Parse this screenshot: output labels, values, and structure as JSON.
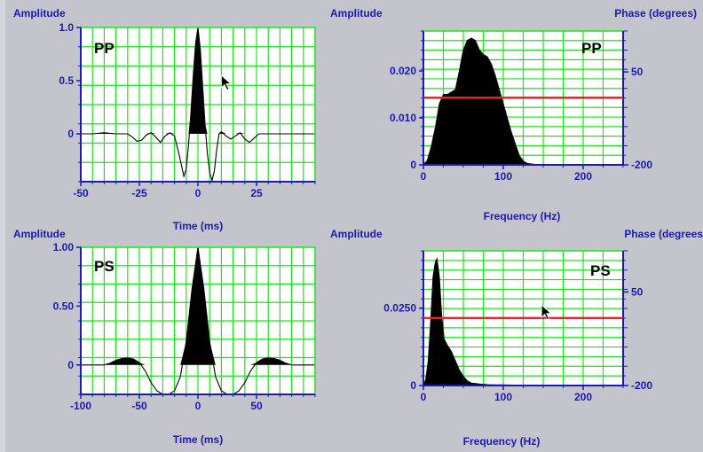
{
  "colors": {
    "background": "#c4c4cc",
    "grid": "#19e619",
    "axis": "#1a1ab4",
    "trace": "#000000",
    "marker": "#ee2222"
  },
  "chart_data": [
    {
      "type": "line",
      "fill": "positive-lobes",
      "tag": "PP",
      "ylabel": "Amplitude",
      "xlabel": "Time (ms)",
      "xlim": [
        -50,
        50
      ],
      "ylim": [
        -0.45,
        1.0
      ],
      "xticks": [
        -50,
        -25,
        0,
        25
      ],
      "yticks": [
        0,
        0.5,
        1.0
      ],
      "ytick_labels": [
        "0",
        "0.5",
        "1.0"
      ],
      "x": [
        -50,
        -45,
        -40,
        -35,
        -30,
        -28,
        -26,
        -24,
        -22,
        -20,
        -18,
        -16,
        -14,
        -12,
        -10,
        -8,
        -6,
        -5,
        -4,
        -3,
        -2,
        -1,
        0,
        1,
        2,
        3,
        4,
        5,
        6,
        7,
        8,
        9,
        10,
        12,
        14,
        16,
        18,
        20,
        22,
        24,
        26,
        28,
        30,
        35,
        40,
        45,
        50
      ],
      "y": [
        0,
        0,
        0.01,
        0,
        0,
        -0.03,
        -0.07,
        -0.06,
        -0.01,
        0.01,
        -0.03,
        -0.08,
        -0.02,
        0.01,
        -0.02,
        -0.2,
        -0.4,
        -0.33,
        -0.1,
        0.2,
        0.55,
        0.85,
        1.0,
        0.8,
        0.45,
        0.1,
        -0.18,
        -0.36,
        -0.44,
        -0.35,
        -0.15,
        0,
        0.02,
        -0.02,
        -0.05,
        -0.02,
        0.01,
        -0.05,
        -0.08,
        -0.04,
        0,
        0,
        0,
        0,
        0,
        0,
        0
      ],
      "cursor": {
        "x": 10,
        "y": 0.55
      }
    },
    {
      "type": "area",
      "tag": "PP",
      "ylabel": "Amplitude",
      "y2label": "Phase (degrees)",
      "xlabel": "Frequency (Hz)",
      "xlim": [
        0,
        250
      ],
      "ylim": [
        0,
        0.0285
      ],
      "y2lim": [
        -200,
        160
      ],
      "xticks": [
        0,
        100,
        200
      ],
      "yticks": [
        0,
        0.01,
        0.02
      ],
      "ytick_labels": [
        "0",
        "0.010",
        "0.020"
      ],
      "y2ticks": [
        -200,
        50
      ],
      "marker_y": 0.0143,
      "x": [
        0,
        5,
        10,
        15,
        20,
        25,
        30,
        35,
        40,
        45,
        50,
        55,
        60,
        65,
        70,
        75,
        80,
        85,
        90,
        95,
        100,
        105,
        110,
        115,
        120,
        125,
        130,
        135,
        140,
        150,
        160,
        170,
        180
      ],
      "y": [
        0,
        0.001,
        0.004,
        0.008,
        0.013,
        0.015,
        0.015,
        0.0155,
        0.016,
        0.02,
        0.0245,
        0.0265,
        0.027,
        0.0265,
        0.0245,
        0.0235,
        0.023,
        0.0215,
        0.019,
        0.016,
        0.013,
        0.01,
        0.007,
        0.0045,
        0.002,
        0.0008,
        0.0003,
        0.0002,
        0.0001,
        0.0001,
        0.0001,
        0.0001,
        0.0001
      ]
    },
    {
      "type": "line",
      "fill": "positive-lobes",
      "tag": "PS",
      "ylabel": "Amplitude",
      "xlabel": "Time (ms)",
      "xlim": [
        -100,
        100
      ],
      "ylim": [
        -0.25,
        1.0
      ],
      "xticks": [
        -100,
        -50,
        0,
        50
      ],
      "yticks": [
        0,
        0.5,
        1.0
      ],
      "ytick_labels": [
        "0",
        "0.50",
        "1.00"
      ],
      "x": [
        -100,
        -90,
        -80,
        -75,
        -70,
        -65,
        -60,
        -55,
        -50,
        -45,
        -40,
        -35,
        -30,
        -25,
        -20,
        -15,
        -10,
        -5,
        0,
        5,
        10,
        15,
        20,
        25,
        30,
        35,
        40,
        45,
        50,
        55,
        60,
        65,
        70,
        75,
        80,
        90,
        100
      ],
      "y": [
        0,
        0,
        0,
        0.015,
        0.04,
        0.055,
        0.06,
        0.05,
        0.02,
        -0.05,
        -0.15,
        -0.22,
        -0.25,
        -0.25,
        -0.22,
        -0.1,
        0.2,
        0.65,
        1.0,
        0.65,
        0.2,
        -0.1,
        -0.22,
        -0.25,
        -0.25,
        -0.22,
        -0.15,
        -0.05,
        0.02,
        0.05,
        0.06,
        0.055,
        0.04,
        0.015,
        0,
        0,
        0
      ]
    },
    {
      "type": "area",
      "tag": "PS",
      "ylabel": "Amplitude",
      "y2label": "Phase (degrees",
      "xlabel": "Frequency (Hz)",
      "xlim": [
        0,
        250
      ],
      "ylim": [
        0,
        0.0435
      ],
      "y2lim": [
        -200,
        160
      ],
      "xticks": [
        0,
        100,
        200
      ],
      "yticks": [
        0,
        0.025
      ],
      "ytick_labels": [
        "0",
        "0.0250"
      ],
      "y2ticks": [
        -200,
        50
      ],
      "marker_y": 0.0218,
      "x": [
        0,
        3,
        6,
        9,
        12,
        15,
        17,
        20,
        23,
        26,
        30,
        35,
        40,
        45,
        50,
        55,
        60,
        70,
        80,
        90,
        100,
        120,
        140
      ],
      "y": [
        0,
        0.002,
        0.008,
        0.02,
        0.035,
        0.04,
        0.041,
        0.035,
        0.022,
        0.015,
        0.013,
        0.011,
        0.008,
        0.005,
        0.003,
        0.0015,
        0.0008,
        0.0005,
        0.0003,
        0.0002,
        0.0002,
        0.0001,
        0.0001
      ],
      "cursor": {
        "x": 148,
        "y": 0.026
      }
    }
  ]
}
